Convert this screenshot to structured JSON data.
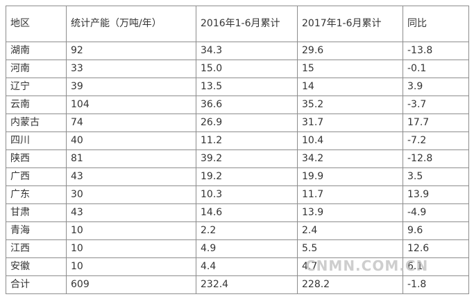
{
  "table": {
    "header": [
      "地区",
      "统计产能（万吨/年）",
      "2016年1-6月累计",
      "2017年1-6月累计",
      "同比"
    ],
    "rows": [
      [
        "湖南",
        "92",
        "34.3",
        "29.6",
        "-13.8"
      ],
      [
        "河南",
        "33",
        "15.0",
        "15",
        "-0.1"
      ],
      [
        "辽宁",
        "39",
        "13.5",
        "14",
        "3.9"
      ],
      [
        "云南",
        "104",
        "36.6",
        "35.2",
        "-3.7"
      ],
      [
        "内蒙古",
        "74",
        "26.9",
        "31.7",
        "17.7"
      ],
      [
        "四川",
        "40",
        "11.2",
        "10.4",
        "-7.2"
      ],
      [
        "陕西",
        "81",
        "39.2",
        "34.2",
        "-12.8"
      ],
      [
        "广西",
        "43",
        "19.2",
        "19.9",
        "3.5"
      ],
      [
        "广东",
        "30",
        "10.3",
        "11.7",
        "13.9"
      ],
      [
        "甘肃",
        "43",
        "14.6",
        "13.9",
        "-4.9"
      ],
      [
        "青海",
        "10",
        "2.2",
        "2.4",
        "9.6"
      ],
      [
        "江西",
        "10",
        "4.9",
        "5.5",
        "12.6"
      ],
      [
        "安徽",
        "10",
        "4.4",
        "4.7",
        "6.1"
      ],
      [
        "合计",
        "609",
        "232.4",
        "228.2",
        "-1.8"
      ]
    ]
  },
  "watermark": "CNMN.COM.CN"
}
